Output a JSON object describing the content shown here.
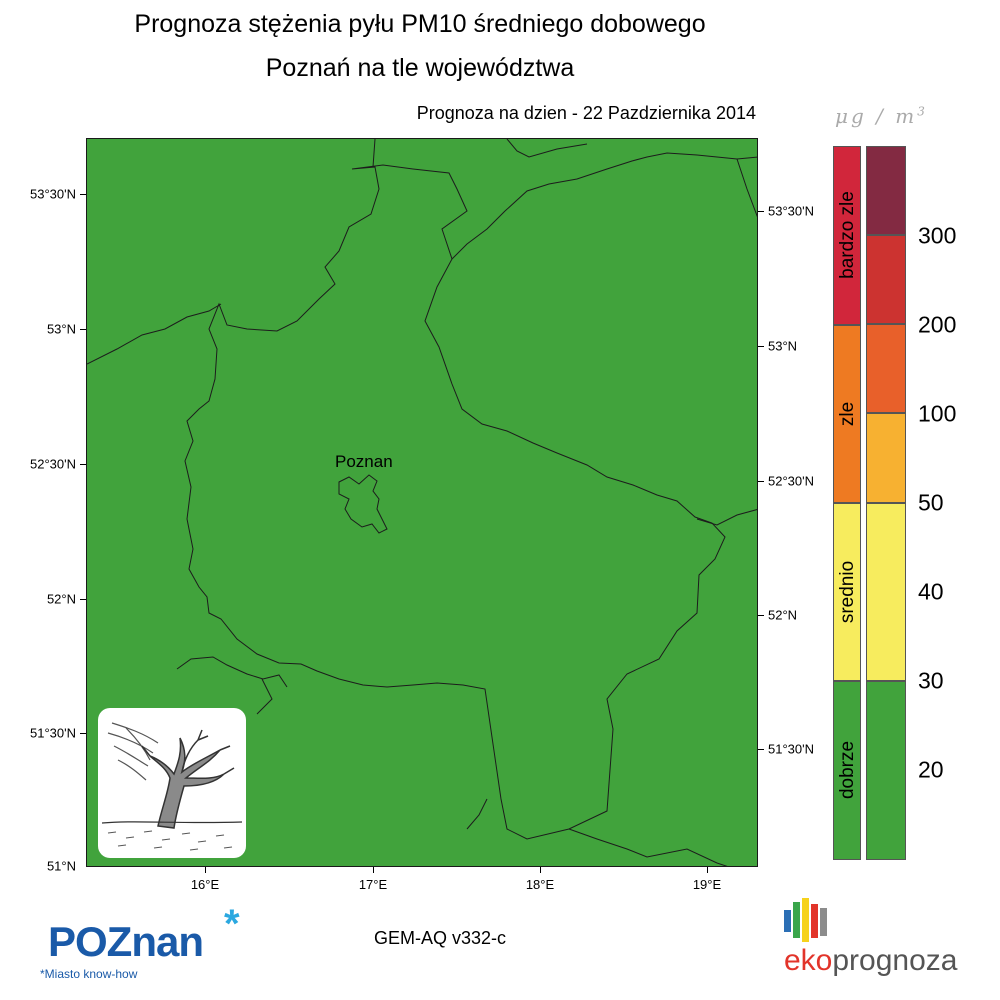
{
  "header": {
    "title_line1": "Prognoza stężenia pyłu PM10 średniego dobowego",
    "title_line2": "Poznań na tle województwa",
    "date_label": "Prognoza na dzien -  22 Pazdziernika 2014"
  },
  "map": {
    "background_color": "#41a33c",
    "border_color": "#1a1a1a",
    "lat_labels_left": [
      "53°30'N",
      "53°N",
      "52°30'N",
      "52°N",
      "51°30'N",
      "51°N"
    ],
    "lat_labels_right": [
      "53°30'N",
      "53°N",
      "52°30'N",
      "52°N",
      "51°30'N"
    ],
    "lon_labels": [
      "16°E",
      "17°E",
      "18°E",
      "19°E"
    ],
    "city_label": "Poznan",
    "forecast_category": "dobrze"
  },
  "legend": {
    "unit": "μg / m",
    "unit_exponent": "3",
    "categories": [
      {
        "label": "bardzo zle",
        "color": "#d1263b"
      },
      {
        "label": "zle",
        "color": "#ee7a22"
      },
      {
        "label": "srednio",
        "color": "#f7ec5e"
      },
      {
        "label": "dobrze",
        "color": "#41a33c"
      }
    ],
    "bands": [
      {
        "color": "#832a42"
      },
      {
        "color": "#cc3330"
      },
      {
        "color": "#e8602a"
      },
      {
        "color": "#f7b131"
      },
      {
        "color": "#f7ec5e"
      },
      {
        "color": "#41a33c"
      }
    ],
    "scale_values": [
      "300",
      "200",
      "100",
      "50",
      "40",
      "30",
      "20"
    ]
  },
  "footer": {
    "poznan_logo_text": "POZnan",
    "poznan_star": "*",
    "poznan_slogan": "*Miasto know-how",
    "model_label": "GEM-AQ v332-c",
    "eko_prefix": "eko",
    "eko_suffix": "prognoza",
    "eko_bar_colors": [
      "#2b6fb5",
      "#3aa64b",
      "#f6d21c",
      "#e2342a",
      "#8c8c8c"
    ]
  }
}
